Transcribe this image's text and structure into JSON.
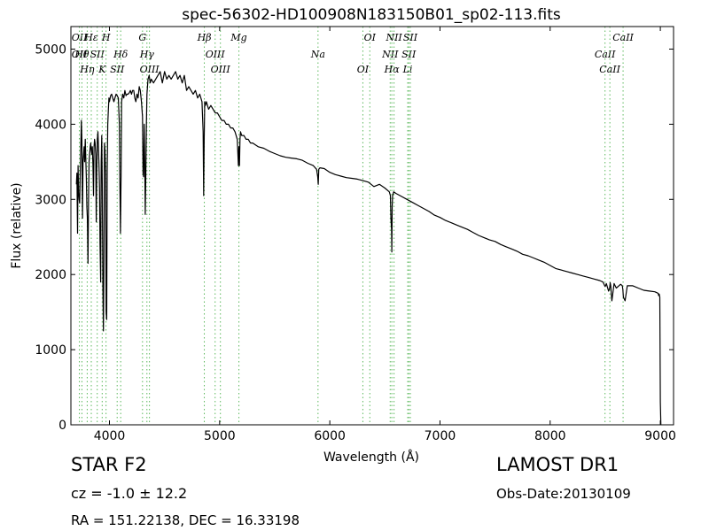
{
  "chart_data": {
    "type": "line",
    "title": "spec-56302-HD100908N183150B01_sp02-113.fits",
    "xlabel": "Wavelength (Å)",
    "ylabel": "Flux (relative)",
    "xlim": [
      3650,
      9120
    ],
    "ylim": [
      0,
      5300
    ],
    "grid": false,
    "xticks": [
      4000,
      5000,
      6000,
      7000,
      8000,
      9000
    ],
    "yticks": [
      0,
      1000,
      2000,
      3000,
      4000,
      5000
    ],
    "xtick_labels": [
      "4000",
      "5000",
      "6000",
      "7000",
      "8000",
      "9000"
    ],
    "ytick_labels": [
      "0",
      "1000",
      "2000",
      "3000",
      "4000",
      "5000"
    ],
    "series": [
      {
        "color": "#000000",
        "x": [
          3700,
          3705,
          3710,
          3715,
          3720,
          3725,
          3730,
          3735,
          3740,
          3745,
          3750,
          3755,
          3760,
          3765,
          3770,
          3775,
          3780,
          3785,
          3790,
          3795,
          3800,
          3805,
          3810,
          3815,
          3820,
          3825,
          3830,
          3835,
          3840,
          3845,
          3850,
          3855,
          3860,
          3865,
          3870,
          3875,
          3880,
          3885,
          3890,
          3895,
          3900,
          3905,
          3910,
          3915,
          3920,
          3925,
          3930,
          3935,
          3940,
          3945,
          3950,
          3955,
          3960,
          3965,
          3970,
          3975,
          3980,
          3985,
          3990,
          3995,
          4000,
          4010,
          4020,
          4030,
          4040,
          4050,
          4060,
          4070,
          4080,
          4090,
          4095,
          4100,
          4105,
          4110,
          4120,
          4130,
          4140,
          4150,
          4160,
          4170,
          4180,
          4190,
          4200,
          4210,
          4220,
          4230,
          4240,
          4250,
          4260,
          4270,
          4280,
          4290,
          4300,
          4305,
          4310,
          4315,
          4320,
          4325,
          4330,
          4335,
          4340,
          4345,
          4350,
          4360,
          4370,
          4380,
          4400,
          4420,
          4440,
          4460,
          4480,
          4500,
          4520,
          4540,
          4560,
          4580,
          4600,
          4620,
          4640,
          4660,
          4680,
          4700,
          4720,
          4740,
          4760,
          4780,
          4800,
          4820,
          4840,
          4850,
          4855,
          4860,
          4865,
          4870,
          4880,
          4890,
          4900,
          4920,
          4940,
          4960,
          4980,
          5000,
          5020,
          5040,
          5060,
          5080,
          5100,
          5120,
          5140,
          5160,
          5170,
          5175,
          5180,
          5185,
          5190,
          5200,
          5220,
          5240,
          5260,
          5280,
          5300,
          5350,
          5400,
          5450,
          5500,
          5550,
          5600,
          5650,
          5700,
          5750,
          5800,
          5850,
          5880,
          5890,
          5895,
          5900,
          5910,
          5950,
          6000,
          6050,
          6100,
          6150,
          6200,
          6250,
          6300,
          6350,
          6400,
          6450,
          6500,
          6540,
          6550,
          6555,
          6560,
          6563,
          6566,
          6570,
          6580,
          6600,
          6650,
          6700,
          6750,
          6800,
          6850,
          6900,
          6950,
          7000,
          7050,
          7100,
          7150,
          7200,
          7250,
          7300,
          7350,
          7400,
          7450,
          7500,
          7550,
          7600,
          7650,
          7700,
          7750,
          7800,
          7850,
          7900,
          7950,
          8000,
          8050,
          8100,
          8150,
          8200,
          8250,
          8300,
          8350,
          8400,
          8450,
          8480,
          8495,
          8500,
          8510,
          8530,
          8540,
          8545,
          8550,
          8560,
          8580,
          8600,
          8640,
          8655,
          8660,
          8665,
          8680,
          8700,
          8750,
          8800,
          8850,
          8900,
          8950,
          8980,
          8985,
          8990,
          8995,
          9000,
          9005
        ],
        "y": [
          3200,
          3350,
          2550,
          3450,
          3100,
          3000,
          2950,
          3400,
          3700,
          4050,
          3800,
          2750,
          3500,
          3600,
          3700,
          3500,
          3800,
          3550,
          3300,
          2900,
          2750,
          2150,
          3000,
          3500,
          3600,
          3700,
          3750,
          3650,
          3600,
          3700,
          3450,
          3050,
          3700,
          3800,
          3750,
          3600,
          2700,
          3400,
          3800,
          3900,
          3700,
          3450,
          3150,
          2400,
          1900,
          3500,
          3850,
          3200,
          1800,
          1250,
          2200,
          3750,
          3650,
          3350,
          1500,
          1400,
          3400,
          4000,
          4200,
          4350,
          4300,
          4380,
          4400,
          4350,
          4300,
          4350,
          4400,
          4380,
          4350,
          4000,
          3200,
          2550,
          3300,
          4300,
          4400,
          4350,
          4450,
          4380,
          4400,
          4400,
          4420,
          4450,
          4400,
          4450,
          4450,
          4350,
          4300,
          4400,
          4350,
          4500,
          4450,
          4300,
          4100,
          3350,
          3300,
          4000,
          3550,
          2800,
          3300,
          4000,
          4400,
          4500,
          4600,
          4650,
          4550,
          4600,
          4550,
          4600,
          4650,
          4700,
          4550,
          4700,
          4600,
          4650,
          4600,
          4650,
          4700,
          4600,
          4650,
          4550,
          4650,
          4450,
          4500,
          4450,
          4400,
          4450,
          4350,
          4400,
          4300,
          3900,
          3050,
          3800,
          4300,
          4250,
          4300,
          4250,
          4200,
          4250,
          4200,
          4150,
          4150,
          4100,
          4050,
          4050,
          4000,
          4000,
          3950,
          3950,
          3900,
          3800,
          3450,
          3700,
          3450,
          3800,
          3900,
          3850,
          3850,
          3800,
          3800,
          3750,
          3750,
          3700,
          3680,
          3640,
          3610,
          3580,
          3560,
          3550,
          3540,
          3520,
          3480,
          3450,
          3400,
          3300,
          3200,
          3400,
          3420,
          3410,
          3360,
          3330,
          3310,
          3290,
          3280,
          3270,
          3250,
          3230,
          3170,
          3200,
          3150,
          3100,
          3050,
          2750,
          2600,
          2300,
          2900,
          3050,
          3100,
          3080,
          3040,
          3000,
          2960,
          2920,
          2880,
          2840,
          2790,
          2760,
          2720,
          2690,
          2660,
          2630,
          2600,
          2560,
          2520,
          2490,
          2460,
          2440,
          2400,
          2370,
          2340,
          2310,
          2270,
          2250,
          2220,
          2190,
          2160,
          2120,
          2080,
          2060,
          2040,
          2020,
          2000,
          1980,
          1960,
          1940,
          1920,
          1900,
          1850,
          1840,
          1880,
          1780,
          1820,
          1890,
          1850,
          1650,
          1880,
          1820,
          1870,
          1850,
          1800,
          1700,
          1650,
          1850,
          1850,
          1820,
          1790,
          1780,
          1770,
          1750,
          1720,
          1740,
          1700,
          300,
          0
        ]
      }
    ],
    "line_markers": [
      {
        "x": 3727,
        "labels": [
          "OII",
          "OII"
        ]
      },
      {
        "x": 3750,
        "labels": [
          "Hθ"
        ]
      },
      {
        "x": 3798,
        "labels": [
          "Hη"
        ]
      },
      {
        "x": 3835,
        "labels": [
          "Hε"
        ]
      },
      {
        "x": 3889,
        "labels": [
          "SII"
        ]
      },
      {
        "x": 3934,
        "labels": [
          "K"
        ]
      },
      {
        "x": 3969,
        "labels": [
          "H"
        ]
      },
      {
        "x": 4102,
        "labels": [
          "Hδ"
        ]
      },
      {
        "x": 4070,
        "labels": [
          "SII"
        ]
      },
      {
        "x": 4300,
        "labels": [
          "G"
        ]
      },
      {
        "x": 4340,
        "labels": [
          "Hγ"
        ]
      },
      {
        "x": 4363,
        "labels": [
          "OIII"
        ]
      },
      {
        "x": 4861,
        "labels": [
          "Hβ"
        ]
      },
      {
        "x": 4959,
        "labels": [
          "OIII"
        ]
      },
      {
        "x": 5007,
        "labels": [
          "OIII"
        ]
      },
      {
        "x": 5175,
        "labels": [
          "Mg"
        ]
      },
      {
        "x": 5893,
        "labels": [
          "Na"
        ]
      },
      {
        "x": 6300,
        "labels": [
          "OI"
        ]
      },
      {
        "x": 6363,
        "labels": [
          "OI"
        ]
      },
      {
        "x": 6548,
        "labels": [
          "NII"
        ]
      },
      {
        "x": 6563,
        "labels": [
          "Hα"
        ]
      },
      {
        "x": 6583,
        "labels": [
          "NII"
        ]
      },
      {
        "x": 6717,
        "labels": [
          "SII"
        ]
      },
      {
        "x": 6707,
        "labels": [
          "Li"
        ]
      },
      {
        "x": 6731,
        "labels": [
          "SII"
        ]
      },
      {
        "x": 8498,
        "labels": [
          "CaII"
        ]
      },
      {
        "x": 8542,
        "labels": [
          "CaII"
        ]
      },
      {
        "x": 8662,
        "labels": [
          "CaII"
        ]
      }
    ],
    "line_color": "#5cb85c"
  },
  "footer": {
    "class_label": "STAR   F2",
    "survey_label": "LAMOST DR1",
    "cz_label": "cz = -1.0  ± 12.2",
    "obsdate_label": "Obs-Date:20130109",
    "radec_label": "RA = 151.22138, DEC = 16.33198"
  }
}
